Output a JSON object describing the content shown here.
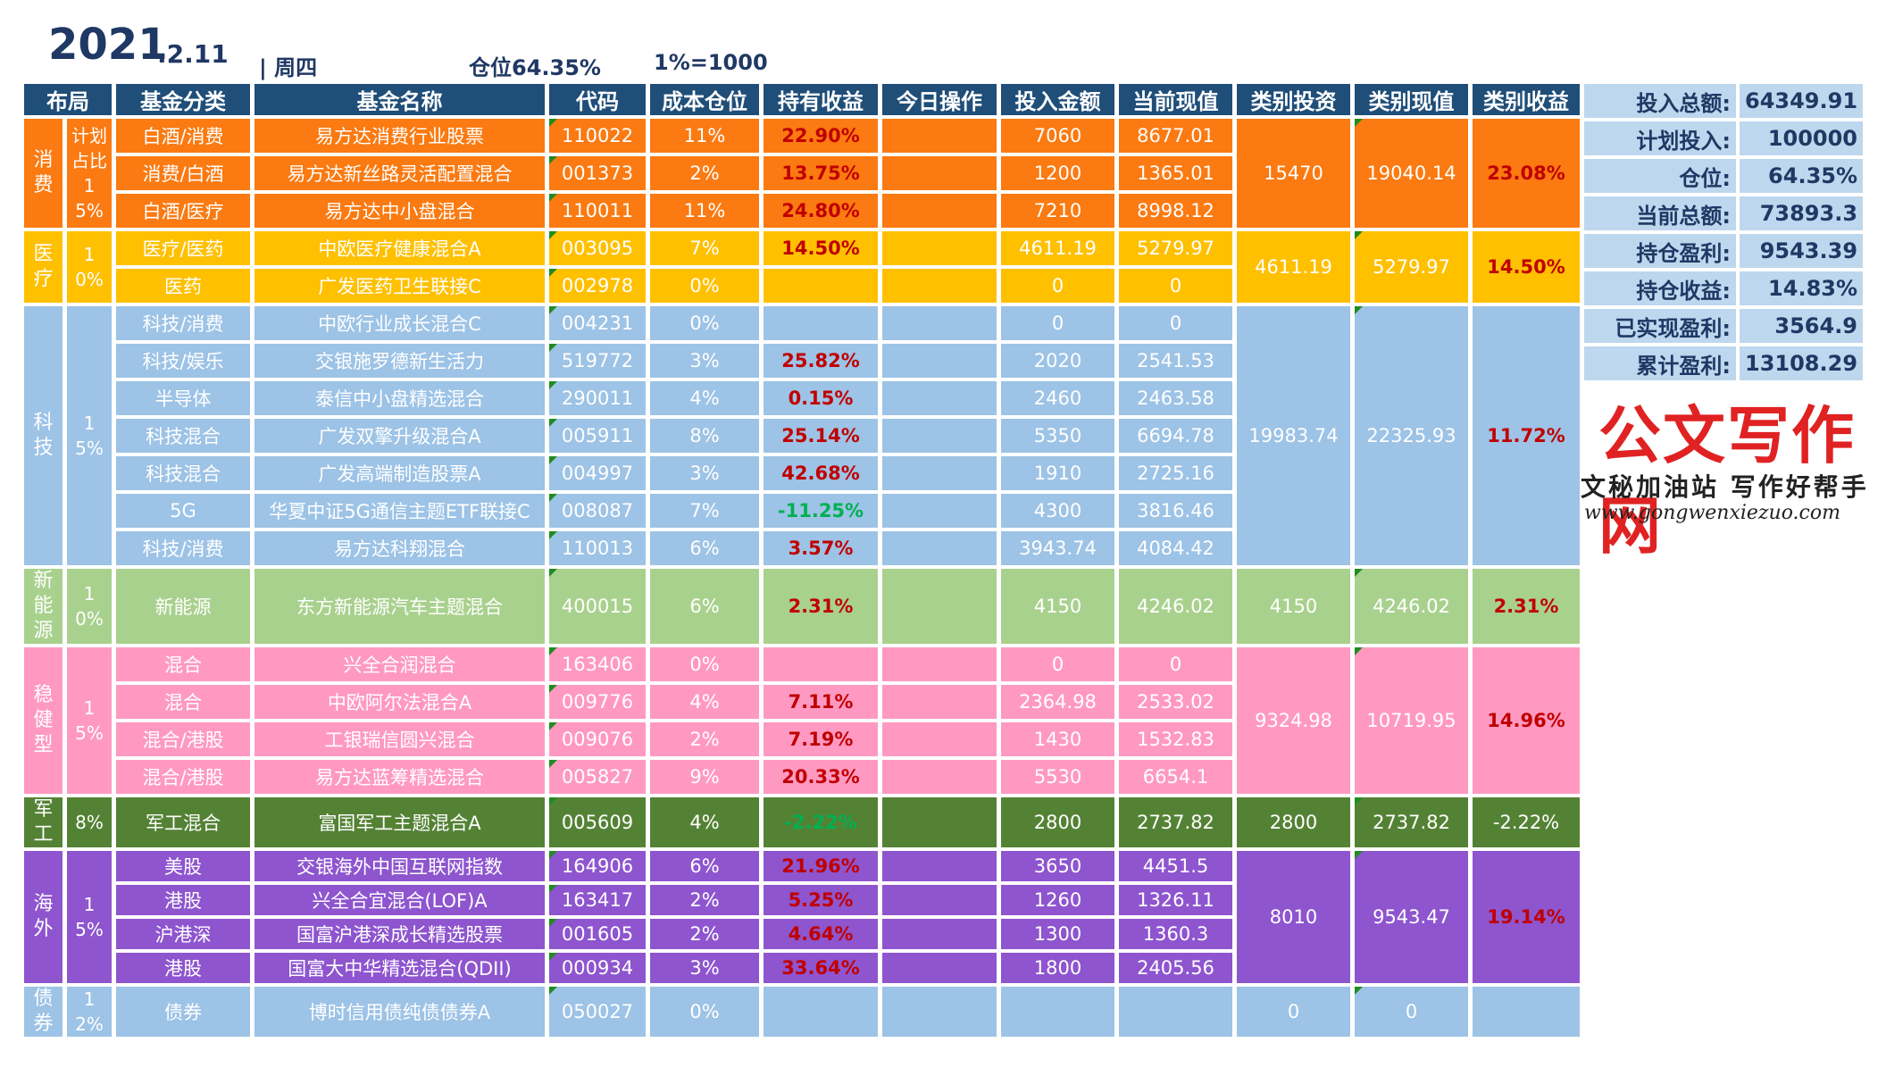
{
  "header": {
    "year": "2021",
    "date": ".2.11",
    "weekday": "| 周四",
    "position": "仓位64.35%",
    "unit": "1%=1000"
  },
  "columns": [
    "布局",
    "基金分类",
    "基金名称",
    "代码",
    "成本仓位",
    "持有收益",
    "今日操作",
    "投入金额",
    "当前现值",
    "类别投资",
    "类别现值",
    "类别收益"
  ],
  "colors": {
    "header_bg": "#1f4e79",
    "consume": "#fb7a11",
    "medical": "#ffc000",
    "tech": "#9dc3e6",
    "newenergy": "#a9d18e",
    "steady": "#ff99c2",
    "military": "#548235",
    "overseas": "#8e55cf",
    "bond": "#9dc3e6",
    "gain_red": "#c00000",
    "loss_green": "#00b050"
  },
  "groups": [
    {
      "key": "consume",
      "name": "消费",
      "ratio": "计划占比15%",
      "color": "#fb7a11",
      "cat_invest": "15470",
      "cat_value": "19040.14",
      "cat_return": "23.08%",
      "cat_neg": false,
      "funds": [
        {
          "category": "白酒/消费",
          "name": "易方达消费行业股票",
          "code": "110022",
          "cost": "11%",
          "ret": "22.90%",
          "neg": false,
          "invest": "7060",
          "value": "8677.01"
        },
        {
          "category": "消费/白酒",
          "name": "易方达新丝路灵活配置混合",
          "code": "001373",
          "cost": "2%",
          "ret": "13.75%",
          "neg": false,
          "invest": "1200",
          "value": "1365.01"
        },
        {
          "category": "白酒/医疗",
          "name": "易方达中小盘混合",
          "code": "110011",
          "cost": "11%",
          "ret": "24.80%",
          "neg": false,
          "invest": "7210",
          "value": "8998.12"
        }
      ]
    },
    {
      "key": "medical",
      "name": "医疗",
      "ratio": "10%",
      "color": "#ffc000",
      "cat_invest": "4611.19",
      "cat_value": "5279.97",
      "cat_return": "14.50%",
      "cat_neg": false,
      "funds": [
        {
          "category": "医疗/医药",
          "name": "中欧医疗健康混合A",
          "code": "003095",
          "cost": "7%",
          "ret": "14.50%",
          "neg": false,
          "invest": "4611.19",
          "value": "5279.97"
        },
        {
          "category": "医药",
          "name": "广发医药卫生联接C",
          "code": "002978",
          "cost": "0%",
          "ret": "",
          "neg": false,
          "invest": "0",
          "value": "0"
        }
      ]
    },
    {
      "key": "tech",
      "name": "科技",
      "ratio": "15%",
      "color": "#9dc3e6",
      "cat_invest": "19983.74",
      "cat_value": "22325.93",
      "cat_return": "11.72%",
      "cat_neg": false,
      "funds": [
        {
          "category": "科技/消费",
          "name": "中欧行业成长混合C",
          "code": "004231",
          "cost": "0%",
          "ret": "",
          "neg": false,
          "invest": "0",
          "value": "0"
        },
        {
          "category": "科技/娱乐",
          "name": "交银施罗德新生活力",
          "code": "519772",
          "cost": "3%",
          "ret": "25.82%",
          "neg": false,
          "invest": "2020",
          "value": "2541.53"
        },
        {
          "category": "半导体",
          "name": "泰信中小盘精选混合",
          "code": "290011",
          "cost": "4%",
          "ret": "0.15%",
          "neg": false,
          "invest": "2460",
          "value": "2463.58"
        },
        {
          "category": "科技混合",
          "name": "广发双擎升级混合A",
          "code": "005911",
          "cost": "8%",
          "ret": "25.14%",
          "neg": false,
          "invest": "5350",
          "value": "6694.78"
        },
        {
          "category": "科技混合",
          "name": "广发高端制造股票A",
          "code": "004997",
          "cost": "3%",
          "ret": "42.68%",
          "neg": false,
          "invest": "1910",
          "value": "2725.16"
        },
        {
          "category": "5G",
          "name": "华夏中证5G通信主题ETF联接C",
          "code": "008087",
          "cost": "7%",
          "ret": "-11.25%",
          "neg": true,
          "invest": "4300",
          "value": "3816.46"
        },
        {
          "category": "科技/消费",
          "name": "易方达科翔混合",
          "code": "110013",
          "cost": "6%",
          "ret": "3.57%",
          "neg": false,
          "invest": "3943.74",
          "value": "4084.42"
        }
      ]
    },
    {
      "key": "newenergy",
      "name": "新能源",
      "ratio": "10%",
      "color": "#a9d18e",
      "cat_invest": "4150",
      "cat_value": "4246.02",
      "cat_return": "2.31%",
      "cat_neg": false,
      "funds": [
        {
          "category": "新能源",
          "name": "东方新能源汽车主题混合",
          "code": "400015",
          "cost": "6%",
          "ret": "2.31%",
          "neg": false,
          "invest": "4150",
          "value": "4246.02"
        }
      ]
    },
    {
      "key": "steady",
      "name": "稳健型",
      "ratio": "15%",
      "color": "#ff99c2",
      "cat_invest": "9324.98",
      "cat_value": "10719.95",
      "cat_return": "14.96%",
      "cat_neg": false,
      "funds": [
        {
          "category": "混合",
          "name": "兴全合润混合",
          "code": "163406",
          "cost": "0%",
          "ret": "",
          "neg": false,
          "invest": "0",
          "value": "0"
        },
        {
          "category": "混合",
          "name": "中欧阿尔法混合A",
          "code": "009776",
          "cost": "4%",
          "ret": "7.11%",
          "neg": false,
          "invest": "2364.98",
          "value": "2533.02"
        },
        {
          "category": "混合/港股",
          "name": "工银瑞信圆兴混合",
          "code": "009076",
          "cost": "2%",
          "ret": "7.19%",
          "neg": false,
          "invest": "1430",
          "value": "1532.83"
        },
        {
          "category": "混合/港股",
          "name": "易方达蓝筹精选混合",
          "code": "005827",
          "cost": "9%",
          "ret": "20.33%",
          "neg": false,
          "invest": "5530",
          "value": "6654.1"
        }
      ]
    },
    {
      "key": "military",
      "name": "军工",
      "ratio": "8%",
      "color": "#548235",
      "cat_invest": "2800",
      "cat_value": "2737.82",
      "cat_return": "-2.22%",
      "cat_neg": true,
      "funds": [
        {
          "category": "军工混合",
          "name": "富国军工主题混合A",
          "code": "005609",
          "cost": "4%",
          "ret": "-2.22%",
          "neg": true,
          "invest": "2800",
          "value": "2737.82"
        }
      ]
    },
    {
      "key": "overseas",
      "name": "海外",
      "ratio": "15%",
      "color": "#8e55cf",
      "cat_invest": "8010",
      "cat_value": "9543.47",
      "cat_return": "19.14%",
      "cat_neg": false,
      "funds": [
        {
          "category": "美股",
          "name": "交银海外中国互联网指数",
          "code": "164906",
          "cost": "6%",
          "ret": "21.96%",
          "neg": false,
          "invest": "3650",
          "value": "4451.5"
        },
        {
          "category": "港股",
          "name": "兴全合宜混合(LOF)A",
          "code": "163417",
          "cost": "2%",
          "ret": "5.25%",
          "neg": false,
          "invest": "1260",
          "value": "1326.11"
        },
        {
          "category": "沪港深",
          "name": "国富沪港深成长精选股票",
          "code": "001605",
          "cost": "2%",
          "ret": "4.64%",
          "neg": false,
          "invest": "1300",
          "value": "1360.3"
        },
        {
          "category": "港股",
          "name": "国富大中华精选混合(QDII)",
          "code": "000934",
          "cost": "3%",
          "ret": "33.64%",
          "neg": false,
          "invest": "1800",
          "value": "2405.56"
        }
      ]
    },
    {
      "key": "bond",
      "name": "债券",
      "ratio": "12%",
      "color": "#9dc3e6",
      "cat_invest": "0",
      "cat_value": "0",
      "cat_return": "",
      "cat_neg": false,
      "funds": [
        {
          "category": "债券",
          "name": "博时信用债纯债债券A",
          "code": "050027",
          "cost": "0%",
          "ret": "",
          "neg": false,
          "invest": "",
          "value": ""
        }
      ]
    }
  ],
  "summary": [
    {
      "label": "投入总额:",
      "value": "64349.91"
    },
    {
      "label": "计划投入:",
      "value": "100000"
    },
    {
      "label": "仓位:",
      "value": "64.35%"
    },
    {
      "label": "当前总额:",
      "value": "73893.3"
    },
    {
      "label": "持仓盈利:",
      "value": "9543.39"
    },
    {
      "label": "持仓收益:",
      "value": "14.83%"
    },
    {
      "label": "已实现盈利:",
      "value": "3564.9"
    },
    {
      "label": "累计盈利:",
      "value": "13108.29"
    }
  ],
  "watermark": {
    "title": "公文写作网",
    "subtitle": "文秘加油站 写作好帮手",
    "url": "www.gongwenxiezuo.com"
  }
}
